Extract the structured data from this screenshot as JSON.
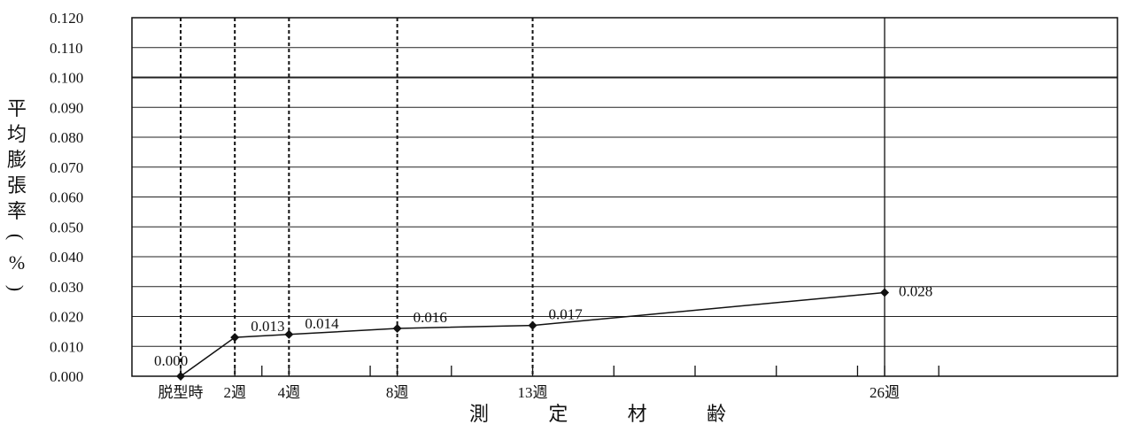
{
  "chart_data": {
    "type": "line",
    "ylabel_chars": [
      "平",
      "均",
      "膨",
      "張",
      "率",
      "(",
      "%",
      ")"
    ],
    "xlabel_chars": [
      "測",
      "定",
      "材",
      "齢"
    ],
    "y_ticks": [
      "0.000",
      "0.010",
      "0.020",
      "0.030",
      "0.040",
      "0.050",
      "0.060",
      "0.070",
      "0.080",
      "0.090",
      "0.100",
      "0.110",
      "0.120"
    ],
    "ylim": [
      0,
      0.12
    ],
    "x_unit": "週",
    "xlim": [
      -1.8,
      34.6
    ],
    "x_ticks": [
      {
        "x": 0,
        "label": "脱型時"
      },
      {
        "x": 2,
        "label": "2週"
      },
      {
        "x": 4,
        "label": "4週"
      },
      {
        "x": 8,
        "label": "8週"
      },
      {
        "x": 13,
        "label": "13週"
      },
      {
        "x": 26,
        "label": "26週"
      }
    ],
    "minor_ticks": [
      3,
      7,
      10,
      16,
      19,
      22,
      25,
      28
    ],
    "grid": true,
    "vertical_lines": [
      {
        "x": 0,
        "style": "dashed"
      },
      {
        "x": 2,
        "style": "dashed"
      },
      {
        "x": 4,
        "style": "dashed"
      },
      {
        "x": 8,
        "style": "dashed"
      },
      {
        "x": 13,
        "style": "dashed"
      },
      {
        "x": 26,
        "style": "solid"
      }
    ],
    "series": [
      {
        "points": [
          {
            "x": 0,
            "y": 0.0,
            "label": "0.000"
          },
          {
            "x": 2,
            "y": 0.013,
            "label": "0.013"
          },
          {
            "x": 4,
            "y": 0.014,
            "label": "0.014"
          },
          {
            "x": 8,
            "y": 0.016,
            "label": "0.016"
          },
          {
            "x": 13,
            "y": 0.017,
            "label": "0.017"
          },
          {
            "x": 26,
            "y": 0.028,
            "label": "0.028"
          }
        ]
      }
    ]
  }
}
